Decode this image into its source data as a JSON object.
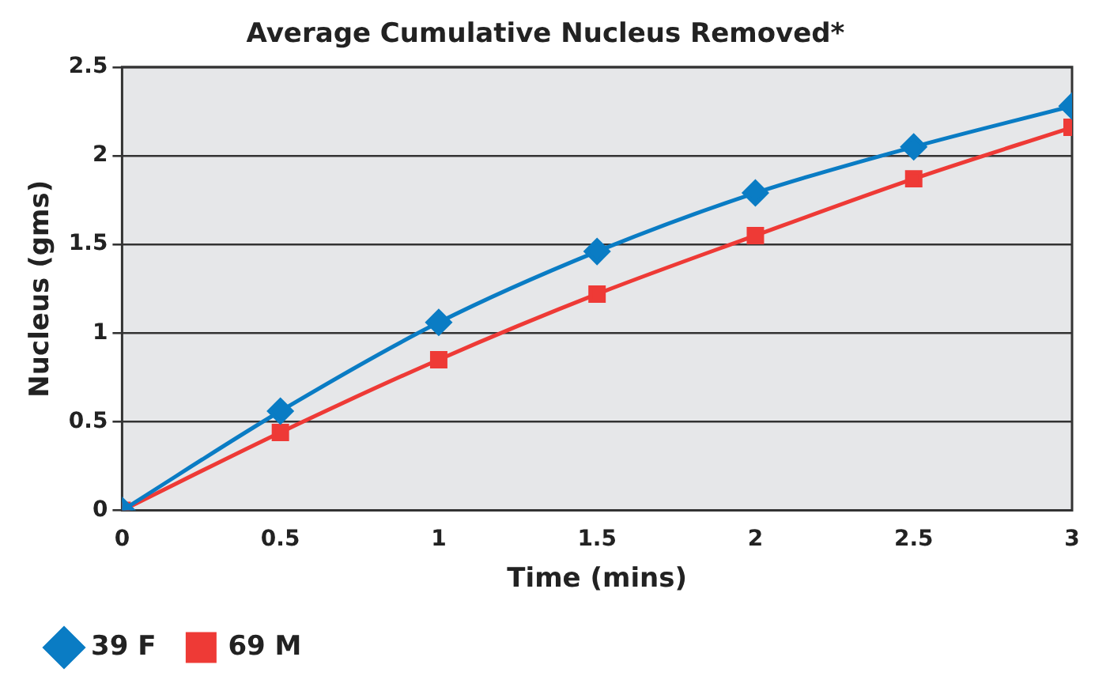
{
  "chart_data": {
    "type": "line",
    "title": "Average Cumulative Nucleus Removed*",
    "xlabel": "Time (mins)",
    "ylabel": "Nucleus (gms)",
    "x": [
      0,
      0.5,
      1,
      1.5,
      2,
      2.5,
      3
    ],
    "series": [
      {
        "name": "39 F",
        "color": "#0a7cc4",
        "marker": "diamond",
        "values": [
          0,
          0.56,
          1.06,
          1.46,
          1.79,
          2.05,
          2.28
        ]
      },
      {
        "name": "69 M",
        "color": "#ee3a36",
        "marker": "square",
        "values": [
          0,
          0.44,
          0.85,
          1.22,
          1.55,
          1.87,
          2.16
        ]
      }
    ],
    "xlim": [
      0,
      3
    ],
    "xticks": [
      0,
      0.5,
      1,
      1.5,
      2,
      2.5,
      3
    ],
    "ylim": [
      0,
      2.5
    ],
    "yticks": [
      0,
      0.5,
      1,
      1.5,
      2,
      2.5
    ],
    "grid": "y",
    "legend": "bottom left",
    "line_style": "solid"
  }
}
